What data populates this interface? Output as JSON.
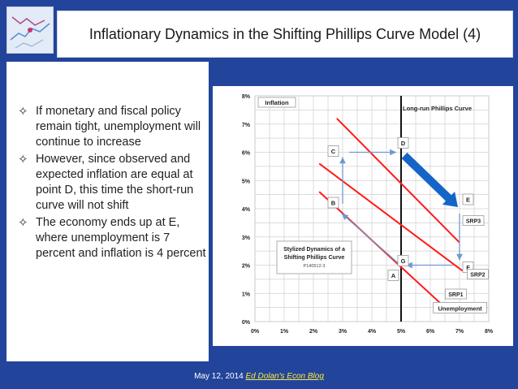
{
  "slide": {
    "title": "Inflationary Dynamics in the Shifting Phillips Curve Model (4)",
    "bullets": [
      "If monetary and fiscal policy remain tight, unemployment will continue to increase",
      "However, since observed and expected inflation are equal at point D, this time the short-run curve will not shift",
      "The economy ends up at E, where unemployment is 7 percent and inflation is 4 percent"
    ],
    "bullet_symbol": "✧",
    "footer_date": "May 12, 2014",
    "footer_link": "Ed Dolan's Econ Blog"
  },
  "chart_data": {
    "type": "line",
    "xlabel": "Unemployment",
    "ylabel": "Inflation",
    "xlim": [
      0,
      8
    ],
    "ylim": [
      0,
      8
    ],
    "x_ticks": [
      "0%",
      "1%",
      "2%",
      "3%",
      "4%",
      "5%",
      "6%",
      "7%",
      "8%"
    ],
    "y_ticks": [
      "0%",
      "1%",
      "2%",
      "3%",
      "4%",
      "5%",
      "6%",
      "7%",
      "8%"
    ],
    "grid": true,
    "long_run_label": "Long-run Phillips Curve",
    "long_run_x": 5,
    "series": [
      {
        "name": "SRP1",
        "points": [
          [
            2.2,
            4.6
          ],
          [
            6.4,
            0.6
          ]
        ]
      },
      {
        "name": "SRP2",
        "points": [
          [
            2.2,
            5.6
          ],
          [
            7.1,
            1.8
          ]
        ]
      },
      {
        "name": "SRP3",
        "points": [
          [
            2.8,
            7.2
          ],
          [
            7.0,
            2.8
          ]
        ]
      }
    ],
    "points": [
      {
        "label": "A",
        "x": 5,
        "y": 2
      },
      {
        "label": "B",
        "x": 3,
        "y": 4
      },
      {
        "label": "C",
        "x": 3,
        "y": 6
      },
      {
        "label": "D",
        "x": 5,
        "y": 6
      },
      {
        "label": "E",
        "x": 7,
        "y": 4
      },
      {
        "label": "F",
        "x": 7,
        "y": 2
      },
      {
        "label": "G",
        "x": 5,
        "y": 2
      }
    ],
    "annotation": {
      "line1": "Stylized Dynamics of a",
      "line2": "Shifting Phillips Curve",
      "line3": "P140512-3"
    },
    "colors": {
      "srp": "#ff1a1a",
      "lrpc": "#111111",
      "arrow": "#6f9ad0",
      "big_arrow": "#1565c8"
    }
  }
}
